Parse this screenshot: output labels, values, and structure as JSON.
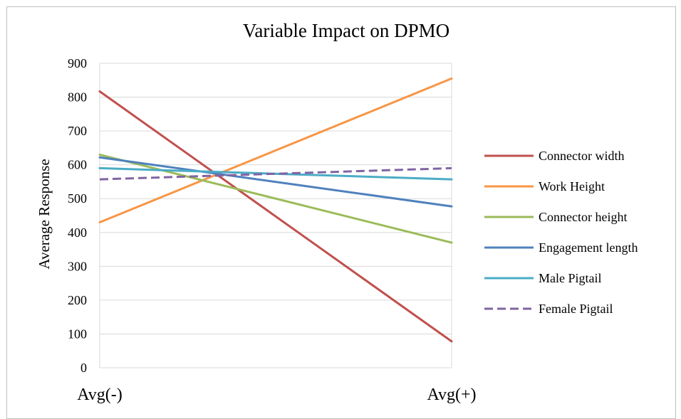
{
  "chart_data": {
    "type": "line",
    "title": "Variable Impact on DPMO",
    "xlabel": "",
    "ylabel": "Average Response",
    "categories": [
      "Avg(-)",
      "Avg(+)"
    ],
    "ylim": [
      0,
      900
    ],
    "yticks": [
      "0",
      "100",
      "200",
      "300",
      "400",
      "500",
      "600",
      "700",
      "800",
      "900"
    ],
    "grid": true,
    "legend_position": "right",
    "series": [
      {
        "name": "Connector width",
        "values": [
          817,
          78
        ],
        "color": "#c0504d",
        "dash": false
      },
      {
        "name": "Work Height",
        "values": [
          430,
          855
        ],
        "color": "#f79646",
        "dash": false
      },
      {
        "name": "Connector height",
        "values": [
          630,
          370
        ],
        "color": "#9bbb59",
        "dash": false
      },
      {
        "name": "Engagement length",
        "values": [
          622,
          477
        ],
        "color": "#4f81bd",
        "dash": false
      },
      {
        "name": "Male Pigtail",
        "values": [
          590,
          557
        ],
        "color": "#4bacc6",
        "dash": false
      },
      {
        "name": "Female Pigtail",
        "values": [
          557,
          590
        ],
        "color": "#8064a2",
        "dash": true
      }
    ]
  }
}
